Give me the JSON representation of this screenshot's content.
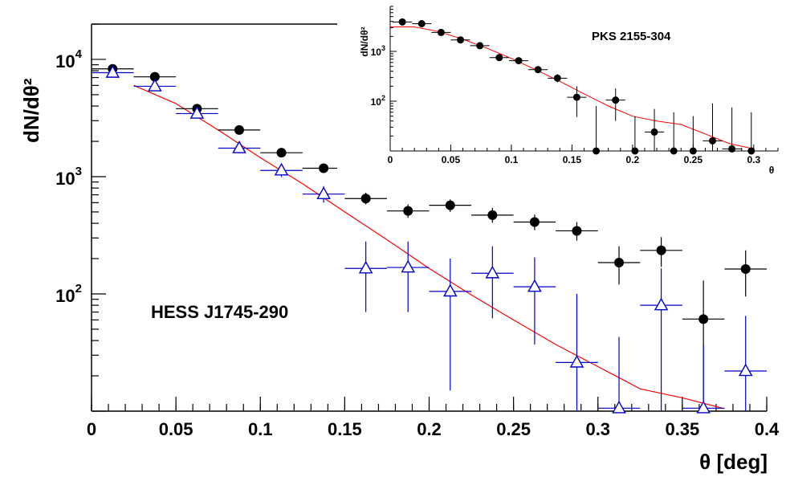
{
  "chart_data": [
    {
      "type": "scatter",
      "label": "HESS J1745-290",
      "xlabel": "θ [deg]",
      "ylabel": "dN/dθ²",
      "xscale": "linear",
      "yscale": "log",
      "xlim": [
        0,
        0.4
      ],
      "ylim": [
        10,
        20000
      ],
      "x_ticks": [
        "0",
        "0.05",
        "0.1",
        "0.15",
        "0.2",
        "0.25",
        "0.3",
        "0.35",
        "0.4"
      ],
      "y_ticks": [
        {
          "value": 100,
          "base": "10",
          "exp": "2"
        },
        {
          "value": 1000,
          "base": "10",
          "exp": "3"
        },
        {
          "value": 10000,
          "base": "10",
          "exp": "4"
        }
      ],
      "series": [
        {
          "marker": "filled-circle",
          "color": "#000000",
          "points": [
            {
              "x": 0.0125,
              "y": 8300,
              "xerr": 0.0125,
              "ylo": 7800,
              "yhi": 8800
            },
            {
              "x": 0.0375,
              "y": 7100,
              "xerr": 0.0125,
              "ylo": 6700,
              "yhi": 7500
            },
            {
              "x": 0.0625,
              "y": 3800,
              "xerr": 0.0125,
              "ylo": 3550,
              "yhi": 4050
            },
            {
              "x": 0.0875,
              "y": 2500,
              "xerr": 0.0125,
              "ylo": 2320,
              "yhi": 2680
            },
            {
              "x": 0.1125,
              "y": 1600,
              "xerr": 0.0125,
              "ylo": 1470,
              "yhi": 1730
            },
            {
              "x": 0.1375,
              "y": 1180,
              "xerr": 0.0125,
              "ylo": 1080,
              "yhi": 1290
            },
            {
              "x": 0.1625,
              "y": 650,
              "xerr": 0.0125,
              "ylo": 580,
              "yhi": 730
            },
            {
              "x": 0.1875,
              "y": 510,
              "xerr": 0.0125,
              "ylo": 445,
              "yhi": 580
            },
            {
              "x": 0.2125,
              "y": 570,
              "xerr": 0.0125,
              "ylo": 500,
              "yhi": 640
            },
            {
              "x": 0.2375,
              "y": 470,
              "xerr": 0.0125,
              "ylo": 405,
              "yhi": 540
            },
            {
              "x": 0.2625,
              "y": 410,
              "xerr": 0.0125,
              "ylo": 350,
              "yhi": 475
            },
            {
              "x": 0.2875,
              "y": 345,
              "xerr": 0.0125,
              "ylo": 285,
              "yhi": 410
            },
            {
              "x": 0.3125,
              "y": 185,
              "xerr": 0.0125,
              "ylo": 120,
              "yhi": 255
            },
            {
              "x": 0.3375,
              "y": 235,
              "xerr": 0.0125,
              "ylo": 170,
              "yhi": 305
            },
            {
              "x": 0.3625,
              "y": 61,
              "xerr": 0.0125,
              "ylo": 10,
              "yhi": 130
            },
            {
              "x": 0.3875,
              "y": 163,
              "xerr": 0.0125,
              "ylo": 95,
              "yhi": 235
            }
          ]
        },
        {
          "marker": "open-triangle",
          "color": "#0000cc",
          "points": [
            {
              "x": 0.0125,
              "y": 7700,
              "xerr": 0.0125,
              "ylo": 7300,
              "yhi": 8100
            },
            {
              "x": 0.0375,
              "y": 5900,
              "xerr": 0.0125,
              "ylo": 5500,
              "yhi": 6300
            },
            {
              "x": 0.0625,
              "y": 3450,
              "xerr": 0.0125,
              "ylo": 3200,
              "yhi": 3700
            },
            {
              "x": 0.0875,
              "y": 1750,
              "xerr": 0.0125,
              "ylo": 1580,
              "yhi": 1920
            },
            {
              "x": 0.1125,
              "y": 1130,
              "xerr": 0.0125,
              "ylo": 990,
              "yhi": 1270
            },
            {
              "x": 0.1375,
              "y": 710,
              "xerr": 0.0125,
              "ylo": 600,
              "yhi": 830
            },
            {
              "x": 0.1625,
              "y": 165,
              "xerr": 0.0125,
              "ylo": 70,
              "yhi": 280
            },
            {
              "x": 0.1875,
              "y": 168,
              "xerr": 0.0125,
              "ylo": 70,
              "yhi": 280
            },
            {
              "x": 0.2125,
              "y": 105,
              "xerr": 0.0125,
              "ylo": 15,
              "yhi": 200
            },
            {
              "x": 0.2375,
              "y": 150,
              "xerr": 0.0125,
              "ylo": 62,
              "yhi": 255
            },
            {
              "x": 0.2625,
              "y": 115,
              "xerr": 0.0125,
              "ylo": 37,
              "yhi": 205
            },
            {
              "x": 0.2875,
              "y": 26,
              "xerr": 0.0125,
              "ylo": 10,
              "yhi": 100
            },
            {
              "x": 0.3125,
              "y": 10.6,
              "xerr": 0.0125,
              "ylo": 10,
              "yhi": 43
            },
            {
              "x": 0.3375,
              "y": 80,
              "xerr": 0.0125,
              "ylo": 10,
              "yhi": 165
            },
            {
              "x": 0.3625,
              "y": 10.6,
              "xerr": 0.0125,
              "ylo": 10,
              "yhi": 37
            },
            {
              "x": 0.3875,
              "y": 22,
              "xerr": 0.0125,
              "ylo": 10,
              "yhi": 65
            }
          ]
        },
        {
          "type": "line",
          "color": "#ff0000",
          "points": [
            {
              "x": 0.025,
              "y": 6000
            },
            {
              "x": 0.05,
              "y": 4200
            },
            {
              "x": 0.075,
              "y": 2500
            },
            {
              "x": 0.1,
              "y": 1450
            },
            {
              "x": 0.125,
              "y": 870
            },
            {
              "x": 0.15,
              "y": 500
            },
            {
              "x": 0.175,
              "y": 290
            },
            {
              "x": 0.2,
              "y": 165
            },
            {
              "x": 0.225,
              "y": 98
            },
            {
              "x": 0.25,
              "y": 60
            },
            {
              "x": 0.275,
              "y": 37
            },
            {
              "x": 0.3,
              "y": 24
            },
            {
              "x": 0.325,
              "y": 15.5
            },
            {
              "x": 0.35,
              "y": 13
            },
            {
              "x": 0.375,
              "y": 10.5
            }
          ]
        }
      ]
    },
    {
      "type": "scatter",
      "label": "PKS 2155-304",
      "xlabel": "θ",
      "ylabel": "dN/dθ²",
      "xscale": "linear",
      "yscale": "log",
      "xlim": [
        0,
        0.32
      ],
      "ylim": [
        10,
        8000
      ],
      "x_ticks": [
        "0",
        "0.05",
        "0.1",
        "0.15",
        "0.2",
        "0.25",
        "0.3"
      ],
      "y_ticks": [
        {
          "value": 100,
          "base": "10",
          "exp": "2"
        },
        {
          "value": 1000,
          "base": "10",
          "exp": "3"
        }
      ],
      "series": [
        {
          "marker": "filled-circle",
          "color": "#000000",
          "points": [
            {
              "x": 0.01,
              "y": 3900,
              "xerr": 0.008,
              "ylo": 3700,
              "yhi": 4100
            },
            {
              "x": 0.026,
              "y": 3600,
              "xerr": 0.008,
              "ylo": 3400,
              "yhi": 3800
            },
            {
              "x": 0.042,
              "y": 2400,
              "xerr": 0.008,
              "ylo": 2250,
              "yhi": 2550
            },
            {
              "x": 0.058,
              "y": 1700,
              "xerr": 0.008,
              "ylo": 1580,
              "yhi": 1820
            },
            {
              "x": 0.074,
              "y": 1300,
              "xerr": 0.008,
              "ylo": 1200,
              "yhi": 1400
            },
            {
              "x": 0.09,
              "y": 750,
              "xerr": 0.008,
              "ylo": 680,
              "yhi": 820
            },
            {
              "x": 0.106,
              "y": 650,
              "xerr": 0.008,
              "ylo": 585,
              "yhi": 720
            },
            {
              "x": 0.122,
              "y": 430,
              "xerr": 0.008,
              "ylo": 375,
              "yhi": 490
            },
            {
              "x": 0.138,
              "y": 290,
              "xerr": 0.008,
              "ylo": 240,
              "yhi": 350
            },
            {
              "x": 0.154,
              "y": 120,
              "xerr": 0.008,
              "ylo": 48,
              "yhi": 200
            },
            {
              "x": 0.17,
              "y": 10,
              "xerr": 0.008,
              "ylo": 10,
              "yhi": 80
            },
            {
              "x": 0.186,
              "y": 105,
              "xerr": 0.008,
              "ylo": 40,
              "yhi": 180
            },
            {
              "x": 0.202,
              "y": 10,
              "xerr": 0.008,
              "ylo": 10,
              "yhi": 50
            },
            {
              "x": 0.218,
              "y": 24,
              "xerr": 0.008,
              "ylo": 10,
              "yhi": 70
            },
            {
              "x": 0.234,
              "y": 10,
              "xerr": 0.008,
              "ylo": 10,
              "yhi": 60
            },
            {
              "x": 0.25,
              "y": 10,
              "xerr": 0.008,
              "ylo": 10,
              "yhi": 50
            },
            {
              "x": 0.266,
              "y": 16,
              "xerr": 0.008,
              "ylo": 10,
              "yhi": 90
            },
            {
              "x": 0.282,
              "y": 11,
              "xerr": 0.008,
              "ylo": 10,
              "yhi": 75
            },
            {
              "x": 0.298,
              "y": 10,
              "xerr": 0.008,
              "ylo": 10,
              "yhi": 60
            }
          ]
        },
        {
          "type": "line",
          "color": "#ff0000",
          "points": [
            {
              "x": 0.0,
              "y": 3100
            },
            {
              "x": 0.02,
              "y": 3100
            },
            {
              "x": 0.04,
              "y": 2500
            },
            {
              "x": 0.06,
              "y": 1750
            },
            {
              "x": 0.08,
              "y": 1150
            },
            {
              "x": 0.1,
              "y": 720
            },
            {
              "x": 0.12,
              "y": 430
            },
            {
              "x": 0.14,
              "y": 250
            },
            {
              "x": 0.16,
              "y": 140
            },
            {
              "x": 0.18,
              "y": 80
            },
            {
              "x": 0.2,
              "y": 50
            },
            {
              "x": 0.22,
              "y": 40
            },
            {
              "x": 0.24,
              "y": 34
            },
            {
              "x": 0.26,
              "y": 22
            },
            {
              "x": 0.28,
              "y": 14
            },
            {
              "x": 0.3,
              "y": 11
            }
          ]
        }
      ]
    }
  ]
}
